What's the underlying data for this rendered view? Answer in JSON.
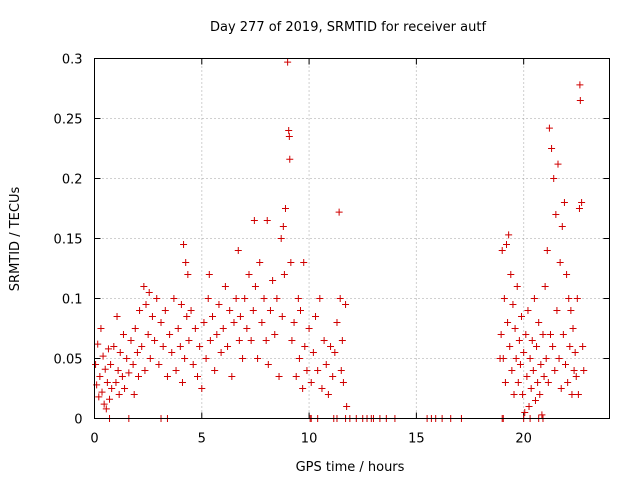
{
  "chart_data": {
    "type": "scatter",
    "title": "Day 277 of 2019, SRMTID for receiver autf",
    "xlabel": "GPS time / hours",
    "ylabel": "SRMTID / TECUs",
    "xlim": [
      0,
      24
    ],
    "ylim": [
      0,
      0.3
    ],
    "grid": true,
    "marker": "+",
    "color": "#d00000",
    "xticks": [
      0,
      5,
      10,
      15,
      20
    ],
    "xtick_labels": [
      "0",
      "5",
      "10",
      "15",
      "20"
    ],
    "yticks": [
      0,
      0.05,
      0.1,
      0.15,
      0.2,
      0.25,
      0.3
    ],
    "ytick_labels": [
      "0",
      "0.05",
      "0.1",
      "0.15",
      "0.2",
      "0.25",
      "0.3"
    ],
    "series": [
      {
        "name": "SRMTID",
        "points": [
          [
            0.05,
            0.045
          ],
          [
            0.1,
            0.028
          ],
          [
            0.15,
            0.062
          ],
          [
            0.2,
            0.018
          ],
          [
            0.25,
            0.035
          ],
          [
            0.3,
            0.075
          ],
          [
            0.35,
            0.022
          ],
          [
            0.4,
            0.052
          ],
          [
            0.45,
            0.012
          ],
          [
            0.5,
            0.041
          ],
          [
            0.55,
            0.008
          ],
          [
            0.6,
            0.03
          ],
          [
            0.65,
            0.058
          ],
          [
            0.7,
            0.016
          ],
          [
            0.75,
            0.045
          ],
          [
            0.8,
            0.025
          ],
          [
            0.9,
            0.06
          ],
          [
            1.0,
            0.03
          ],
          [
            1.05,
            0.085
          ],
          [
            1.1,
            0.04
          ],
          [
            1.15,
            0.02
          ],
          [
            1.2,
            0.055
          ],
          [
            1.3,
            0.035
          ],
          [
            1.35,
            0.07
          ],
          [
            1.4,
            0.025
          ],
          [
            1.5,
            0.05
          ],
          [
            1.6,
            0.038
          ],
          [
            1.7,
            0.065
          ],
          [
            1.8,
            0.045
          ],
          [
            1.85,
            0.02
          ],
          [
            1.9,
            0.075
          ],
          [
            2.0,
            0.055
          ],
          [
            2.05,
            0.035
          ],
          [
            2.1,
            0.09
          ],
          [
            2.2,
            0.06
          ],
          [
            2.3,
            0.11
          ],
          [
            2.35,
            0.04
          ],
          [
            2.4,
            0.095
          ],
          [
            2.5,
            0.07
          ],
          [
            2.55,
            0.105
          ],
          [
            2.6,
            0.05
          ],
          [
            2.7,
            0.085
          ],
          [
            2.8,
            0.065
          ],
          [
            2.9,
            0.1
          ],
          [
            3.0,
            0.045
          ],
          [
            3.1,
            0.08
          ],
          [
            3.2,
            0.06
          ],
          [
            3.3,
            0.09
          ],
          [
            3.4,
            0.035
          ],
          [
            3.5,
            0.07
          ],
          [
            3.6,
            0.055
          ],
          [
            3.7,
            0.1
          ],
          [
            3.8,
            0.04
          ],
          [
            3.9,
            0.075
          ],
          [
            4.0,
            0.06
          ],
          [
            4.05,
            0.095
          ],
          [
            4.1,
            0.03
          ],
          [
            4.15,
            0.145
          ],
          [
            4.2,
            0.05
          ],
          [
            4.25,
            0.13
          ],
          [
            4.3,
            0.085
          ],
          [
            4.35,
            0.12
          ],
          [
            4.4,
            0.065
          ],
          [
            4.5,
            0.09
          ],
          [
            4.6,
            0.045
          ],
          [
            4.7,
            0.075
          ],
          [
            4.8,
            0.035
          ],
          [
            4.9,
            0.06
          ],
          [
            5.0,
            0.025
          ],
          [
            5.1,
            0.08
          ],
          [
            5.2,
            0.05
          ],
          [
            5.3,
            0.1
          ],
          [
            5.35,
            0.12
          ],
          [
            5.4,
            0.065
          ],
          [
            5.5,
            0.085
          ],
          [
            5.6,
            0.04
          ],
          [
            5.7,
            0.07
          ],
          [
            5.8,
            0.095
          ],
          [
            5.9,
            0.055
          ],
          [
            6.0,
            0.075
          ],
          [
            6.1,
            0.11
          ],
          [
            6.2,
            0.06
          ],
          [
            6.3,
            0.09
          ],
          [
            6.4,
            0.035
          ],
          [
            6.5,
            0.08
          ],
          [
            6.6,
            0.1
          ],
          [
            6.7,
            0.14
          ],
          [
            6.75,
            0.065
          ],
          [
            6.8,
            0.085
          ],
          [
            6.9,
            0.05
          ],
          [
            7.0,
            0.1
          ],
          [
            7.1,
            0.075
          ],
          [
            7.2,
            0.12
          ],
          [
            7.3,
            0.065
          ],
          [
            7.4,
            0.09
          ],
          [
            7.45,
            0.165
          ],
          [
            7.5,
            0.11
          ],
          [
            7.6,
            0.05
          ],
          [
            7.7,
            0.13
          ],
          [
            7.8,
            0.08
          ],
          [
            7.9,
            0.1
          ],
          [
            8.0,
            0.065
          ],
          [
            8.05,
            0.165
          ],
          [
            8.1,
            0.045
          ],
          [
            8.2,
            0.09
          ],
          [
            8.3,
            0.115
          ],
          [
            8.4,
            0.07
          ],
          [
            8.5,
            0.1
          ],
          [
            8.6,
            0.035
          ],
          [
            8.7,
            0.15
          ],
          [
            8.75,
            0.085
          ],
          [
            8.8,
            0.16
          ],
          [
            8.85,
            0.12
          ],
          [
            8.9,
            0.175
          ],
          [
            9.0,
            0.297
          ],
          [
            9.05,
            0.24
          ],
          [
            9.08,
            0.235
          ],
          [
            9.1,
            0.216
          ],
          [
            9.15,
            0.13
          ],
          [
            9.2,
            0.065
          ],
          [
            9.3,
            0.08
          ],
          [
            9.4,
            0.035
          ],
          [
            9.5,
            0.1
          ],
          [
            9.55,
            0.05
          ],
          [
            9.6,
            0.09
          ],
          [
            9.7,
            0.025
          ],
          [
            9.75,
            0.13
          ],
          [
            9.8,
            0.06
          ],
          [
            9.9,
            0.04
          ],
          [
            10.0,
            0.075
          ],
          [
            10.1,
            0.03
          ],
          [
            10.2,
            0.055
          ],
          [
            10.3,
            0.085
          ],
          [
            10.4,
            0.04
          ],
          [
            10.5,
            0.1
          ],
          [
            10.6,
            0.025
          ],
          [
            10.7,
            0.065
          ],
          [
            10.8,
            0.045
          ],
          [
            10.9,
            0.02
          ],
          [
            11.0,
            0.06
          ],
          [
            11.1,
            0.035
          ],
          [
            11.2,
            0.055
          ],
          [
            11.3,
            0.08
          ],
          [
            11.4,
            0.172
          ],
          [
            11.45,
            0.1
          ],
          [
            11.5,
            0.04
          ],
          [
            11.55,
            0.065
          ],
          [
            11.6,
            0.03
          ],
          [
            11.7,
            0.095
          ],
          [
            11.75,
            0.01
          ],
          [
            0.7,
            0.0
          ],
          [
            1.6,
            0.0
          ],
          [
            3.1,
            0.0
          ],
          [
            3.4,
            0.0
          ],
          [
            10.05,
            0.0
          ],
          [
            10.1,
            0.0
          ],
          [
            10.4,
            0.0
          ],
          [
            11.15,
            0.0
          ],
          [
            11.3,
            0.0
          ],
          [
            11.7,
            0.0
          ],
          [
            11.9,
            0.0
          ],
          [
            12.2,
            0.0
          ],
          [
            12.5,
            0.0
          ],
          [
            12.7,
            0.0
          ],
          [
            12.9,
            0.0
          ],
          [
            13.0,
            0.0
          ],
          [
            13.3,
            0.0
          ],
          [
            13.6,
            0.0
          ],
          [
            14.0,
            0.0
          ],
          [
            15.5,
            0.0
          ],
          [
            15.7,
            0.0
          ],
          [
            15.9,
            0.0
          ],
          [
            16.2,
            0.0
          ],
          [
            16.6,
            0.0
          ],
          [
            17.1,
            0.0
          ],
          [
            19.0,
            0.0
          ],
          [
            19.05,
            0.0
          ],
          [
            20.0,
            0.0
          ],
          [
            20.3,
            0.0
          ],
          [
            20.7,
            0.0
          ],
          [
            20.9,
            0.0
          ],
          [
            18.9,
            0.05
          ],
          [
            18.95,
            0.07
          ],
          [
            19.0,
            0.14
          ],
          [
            19.05,
            0.05
          ],
          [
            19.1,
            0.1
          ],
          [
            19.15,
            0.03
          ],
          [
            19.2,
            0.145
          ],
          [
            19.25,
            0.08
          ],
          [
            19.3,
            0.153
          ],
          [
            19.35,
            0.06
          ],
          [
            19.4,
            0.12
          ],
          [
            19.45,
            0.04
          ],
          [
            19.5,
            0.095
          ],
          [
            19.55,
            0.02
          ],
          [
            19.6,
            0.075
          ],
          [
            19.65,
            0.05
          ],
          [
            19.7,
            0.11
          ],
          [
            19.75,
            0.03
          ],
          [
            19.8,
            0.065
          ],
          [
            19.85,
            0.045
          ],
          [
            19.9,
            0.085
          ],
          [
            19.95,
            0.02
          ],
          [
            20.0,
            0.055
          ],
          [
            20.05,
            0.005
          ],
          [
            20.1,
            0.07
          ],
          [
            20.15,
            0.035
          ],
          [
            20.2,
            0.09
          ],
          [
            20.25,
            0.01
          ],
          [
            20.3,
            0.05
          ],
          [
            20.35,
            0.025
          ],
          [
            20.4,
            0.065
          ],
          [
            20.45,
            0.04
          ],
          [
            20.5,
            0.1
          ],
          [
            20.55,
            0.015
          ],
          [
            20.6,
            0.06
          ],
          [
            20.65,
            0.03
          ],
          [
            20.7,
            0.08
          ],
          [
            20.75,
            0.02
          ],
          [
            20.8,
            0.045
          ],
          [
            20.85,
            0.003
          ],
          [
            20.9,
            0.07
          ],
          [
            20.95,
            0.035
          ],
          [
            21.0,
            0.11
          ],
          [
            21.05,
            0.05
          ],
          [
            21.1,
            0.14
          ],
          [
            21.15,
            0.03
          ],
          [
            21.2,
            0.242
          ],
          [
            21.25,
            0.07
          ],
          [
            21.3,
            0.225
          ],
          [
            21.35,
            0.06
          ],
          [
            21.4,
            0.2
          ],
          [
            21.45,
            0.04
          ],
          [
            21.5,
            0.17
          ],
          [
            21.55,
            0.09
          ],
          [
            21.6,
            0.212
          ],
          [
            21.65,
            0.05
          ],
          [
            21.7,
            0.13
          ],
          [
            21.75,
            0.025
          ],
          [
            21.8,
            0.16
          ],
          [
            21.85,
            0.07
          ],
          [
            21.9,
            0.18
          ],
          [
            21.95,
            0.045
          ],
          [
            22.0,
            0.12
          ],
          [
            22.05,
            0.03
          ],
          [
            22.1,
            0.1
          ],
          [
            22.15,
            0.06
          ],
          [
            22.2,
            0.09
          ],
          [
            22.25,
            0.02
          ],
          [
            22.3,
            0.075
          ],
          [
            22.35,
            0.04
          ],
          [
            22.4,
            0.055
          ],
          [
            22.45,
            0.035
          ],
          [
            22.5,
            0.1
          ],
          [
            22.55,
            0.02
          ],
          [
            22.6,
            0.175
          ],
          [
            22.62,
            0.278
          ],
          [
            22.64,
            0.265
          ],
          [
            22.7,
            0.18
          ],
          [
            22.75,
            0.06
          ],
          [
            22.8,
            0.04
          ]
        ]
      }
    ]
  }
}
